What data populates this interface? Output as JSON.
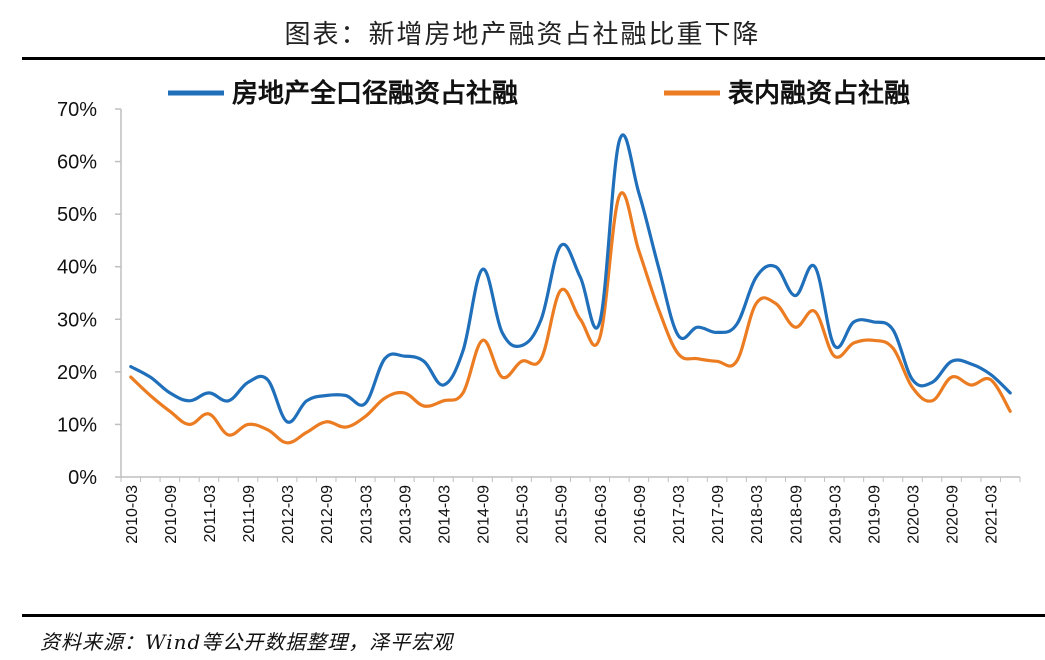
{
  "title": "图表：新增房地产融资占社融比重下降",
  "source": "资料来源：Wind等公开数据整理，泽平宏观",
  "colors": {
    "series1": "#1f6fba",
    "series2": "#ec7c22",
    "axis": "#bfbfbf"
  },
  "chart_data": {
    "type": "line",
    "ylim": [
      0,
      70
    ],
    "yticks": [
      "0%",
      "10%",
      "20%",
      "30%",
      "40%",
      "50%",
      "60%",
      "70%"
    ],
    "xtick_labels": [
      "2010-03",
      "2010-09",
      "2011-03",
      "2011-09",
      "2012-03",
      "2012-09",
      "2013-03",
      "2013-09",
      "2014-03",
      "2014-09",
      "2015-03",
      "2015-09",
      "2016-03",
      "2016-09",
      "2017-03",
      "2017-09",
      "2018-03",
      "2018-09",
      "2019-03",
      "2019-09",
      "2020-03",
      "2020-09",
      "2021-03"
    ],
    "x": [
      "2010-03",
      "2010-06",
      "2010-09",
      "2010-12",
      "2011-03",
      "2011-06",
      "2011-09",
      "2011-12",
      "2012-03",
      "2012-06",
      "2012-09",
      "2012-12",
      "2013-03",
      "2013-06",
      "2013-09",
      "2013-12",
      "2014-03",
      "2014-06",
      "2014-09",
      "2014-12",
      "2015-03",
      "2015-06",
      "2015-09",
      "2015-12",
      "2016-03",
      "2016-06",
      "2016-09",
      "2016-12",
      "2017-03",
      "2017-06",
      "2017-09",
      "2017-12",
      "2018-03",
      "2018-06",
      "2018-09",
      "2018-12",
      "2019-03",
      "2019-06",
      "2019-09",
      "2019-12",
      "2020-03",
      "2020-06",
      "2020-09",
      "2020-12",
      "2021-03",
      "2021-06"
    ],
    "series": [
      {
        "name": "房地产全口径融资占社融",
        "values": [
          21,
          19,
          16,
          14.5,
          16,
          14.5,
          18,
          18.5,
          10.5,
          14.5,
          15.5,
          15.5,
          14,
          22.5,
          23,
          22,
          17.5,
          24,
          39.5,
          27.5,
          25,
          30,
          44,
          38,
          29.5,
          64,
          54,
          40,
          27,
          28.5,
          27.5,
          29,
          38,
          40,
          34.5,
          40,
          25,
          29.5,
          29.5,
          28,
          18.5,
          18,
          22,
          21.5,
          19.5,
          16
        ]
      },
      {
        "name": "表内融资占社融",
        "values": [
          19,
          15.5,
          12.5,
          10,
          12,
          8,
          10,
          9,
          6.5,
          8.5,
          10.5,
          9.5,
          11.5,
          15,
          16,
          13.5,
          14.5,
          16,
          26,
          19,
          22,
          22.5,
          35.5,
          30,
          26.5,
          53.5,
          43,
          32,
          23.5,
          22.5,
          22,
          22,
          33,
          33,
          28.5,
          31.5,
          23,
          25.5,
          26,
          24.5,
          17,
          14.5,
          19,
          17.5,
          18.5,
          12.5
        ]
      }
    ]
  }
}
